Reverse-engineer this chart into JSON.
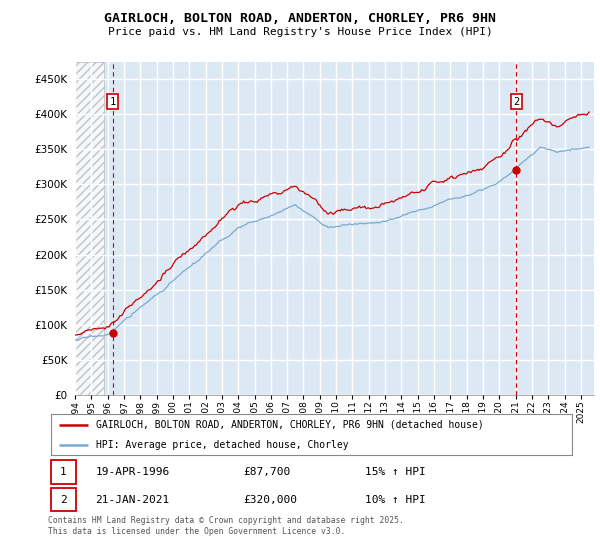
{
  "title1": "GAIRLOCH, BOLTON ROAD, ANDERTON, CHORLEY, PR6 9HN",
  "title2": "Price paid vs. HM Land Registry's House Price Index (HPI)",
  "ylabel_ticks": [
    "£0",
    "£50K",
    "£100K",
    "£150K",
    "£200K",
    "£250K",
    "£300K",
    "£350K",
    "£400K",
    "£450K"
  ],
  "ytick_values": [
    0,
    50000,
    100000,
    150000,
    200000,
    250000,
    300000,
    350000,
    400000,
    450000
  ],
  "ylim": [
    0,
    475000
  ],
  "xlim_start": 1994.0,
  "xlim_end": 2025.8,
  "hpi_color": "#7aaad0",
  "price_color": "#cc0000",
  "ann1_x": 1996.3,
  "ann1_y": 87700,
  "ann2_x": 2021.05,
  "ann2_y": 320000,
  "legend1": "GAIRLOCH, BOLTON ROAD, ANDERTON, CHORLEY, PR6 9HN (detached house)",
  "legend2": "HPI: Average price, detached house, Chorley",
  "footer": "Contains HM Land Registry data © Crown copyright and database right 2025.\nThis data is licensed under the Open Government Licence v3.0.",
  "table_rows": [
    {
      "num": "1",
      "date": "19-APR-1996",
      "price": "£87,700",
      "note": "15% ↑ HPI"
    },
    {
      "num": "2",
      "date": "21-JAN-2021",
      "price": "£320,000",
      "note": "10% ↑ HPI"
    }
  ],
  "background_color": "#dce9f5",
  "grid_color": "#ffffff",
  "hatch_end": 1995.75
}
